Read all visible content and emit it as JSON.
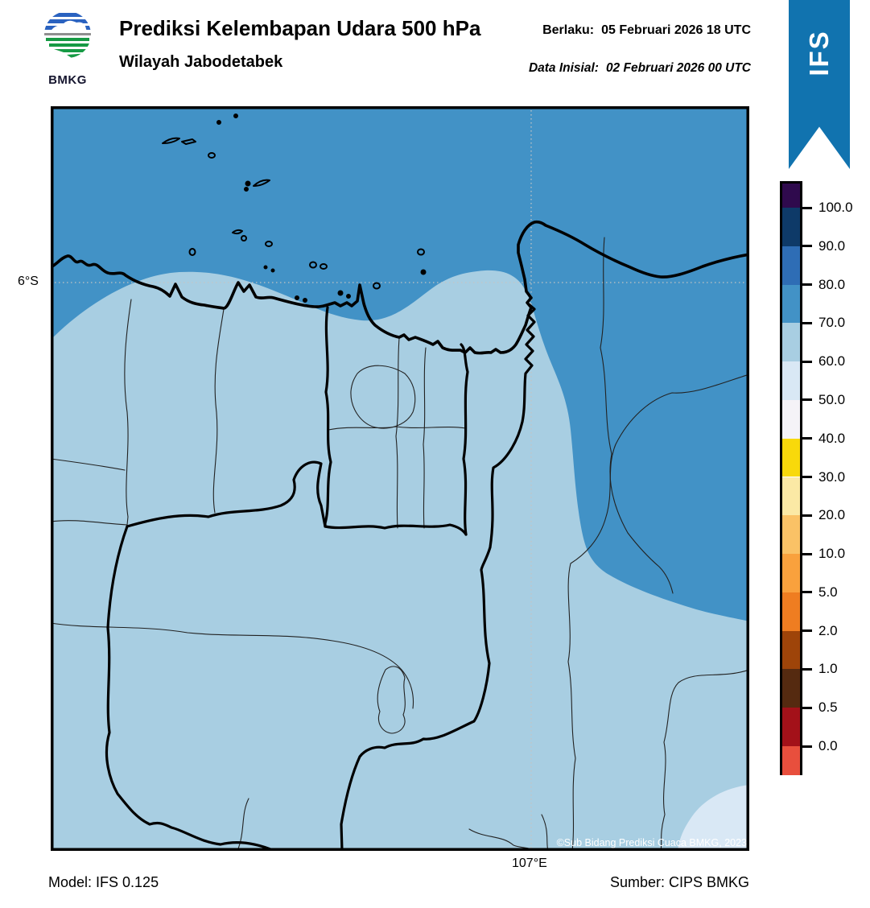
{
  "header": {
    "logo_org": "BMKG",
    "title": "Prediksi Kelembapan Udara 500 hPa",
    "subtitle": "Wilayah Jabodetabek",
    "valid_label": "Berlaku:",
    "valid_value": "05 Februari 2026 18 UTC",
    "init_label": "Data Inisial:",
    "init_value": "02 Februari 2026 00 UTC"
  },
  "ribbon": {
    "label": "IFS",
    "color": "#1173af"
  },
  "map": {
    "y_axis_label": "6°S",
    "x_axis_label": "107°E",
    "copyright": "©Sub Bidang Prediksi Cuaca BMKG, 2023",
    "colors": {
      "sea_70_80": "#4292c6",
      "land_60_70": "#a8cee2",
      "patch_50_60": "#d9e8f5",
      "gridline": "#c4c4c4"
    }
  },
  "colorbar": {
    "tick_labels": [
      "100.0",
      "90.0",
      "80.0",
      "70.0",
      "60.0",
      "50.0",
      "40.0",
      "30.0",
      "20.0",
      "10.0",
      "5.0",
      "2.0",
      "1.0",
      "0.5",
      "0.0"
    ],
    "segment_colors": [
      "#2f0a4d",
      "#0e3a68",
      "#2e6db5",
      "#4292c6",
      "#a8cee2",
      "#d9e8f5",
      "#f5f3f7",
      "#f8d90b",
      "#fbe9a5",
      "#fac266",
      "#f9a13d",
      "#ef7d21",
      "#9e4409",
      "#552a10",
      "#a31119",
      "#e84f3d"
    ]
  },
  "footer": {
    "model": "Model: IFS 0.125",
    "source": "Sumber: CIPS BMKG"
  },
  "chart_data": {
    "type": "heatmap",
    "title": "Prediksi Kelembapan Udara 500 hPa",
    "region": "Wilayah Jabodetabek",
    "valid_time": "05 Februari 2026 18 UTC",
    "initial_time": "02 Februari 2026 00 UTC",
    "model": "IFS 0.125",
    "source": "CIPS BMKG",
    "units": "%",
    "scale_levels": [
      0.0,
      0.5,
      1.0,
      2.0,
      5.0,
      10.0,
      20.0,
      30.0,
      40.0,
      50.0,
      60.0,
      70.0,
      80.0,
      90.0,
      100.0
    ],
    "map_regions": [
      {
        "area": "Java Sea / north of coastline",
        "value_range_percent": "70-80"
      },
      {
        "area": "Most of Jabodetabek land area",
        "value_range_percent": "60-70"
      },
      {
        "area": "Northeast (Karawang) lobe",
        "value_range_percent": "70-80"
      },
      {
        "area": "Southeast corner patch",
        "value_range_percent": "50-60"
      }
    ],
    "gridlines": {
      "longitude": "107°E",
      "latitude": "6°S"
    }
  }
}
